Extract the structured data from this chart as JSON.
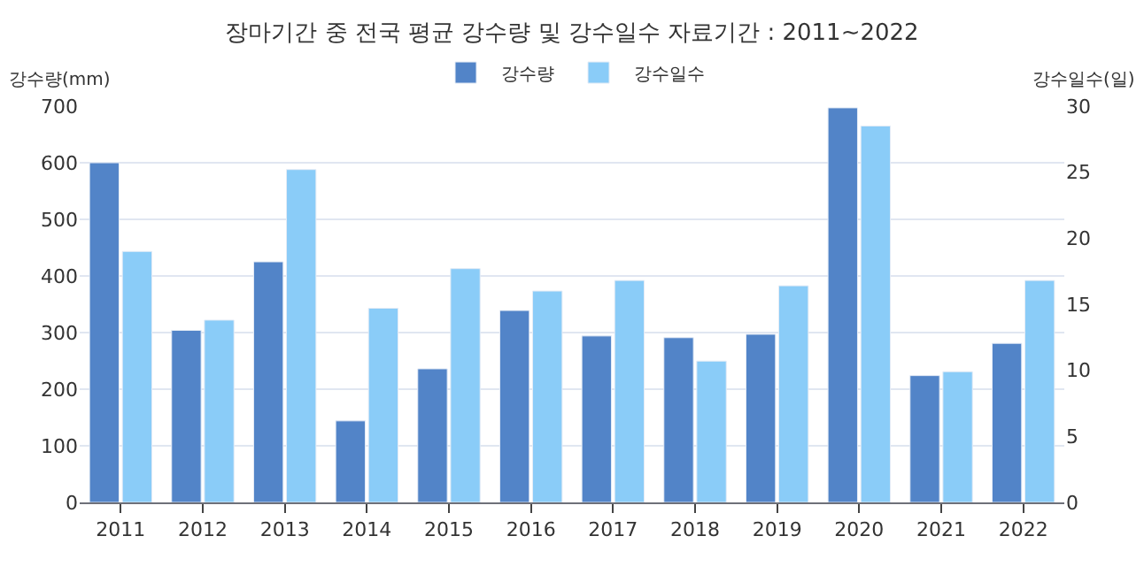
{
  "chart_data": {
    "type": "bar",
    "title": "장마기간 중 전국 평균 강수량 및 강수일수 자료기간 : 2011~2022",
    "ylabel": "강수량(mm)",
    "y2label": "강수일수(일)",
    "categories": [
      "2011",
      "2012",
      "2013",
      "2014",
      "2015",
      "2016",
      "2017",
      "2018",
      "2019",
      "2020",
      "2021",
      "2022"
    ],
    "series": [
      {
        "name": "강수량",
        "color": "#5284c8",
        "values": [
          600,
          304,
          425,
          144,
          236,
          339,
          294,
          291,
          297,
          697,
          224,
          281
        ]
      },
      {
        "name": "강수일수",
        "color": "#8accf8",
        "axis": "y2",
        "values": [
          19.0,
          13.8,
          25.2,
          14.7,
          17.7,
          16.0,
          16.8,
          10.7,
          16.4,
          28.5,
          9.9,
          16.8
        ]
      }
    ],
    "ylim": [
      0,
      700
    ],
    "yticks": [
      0,
      100,
      200,
      300,
      400,
      500,
      600,
      700
    ],
    "y2lim": [
      0,
      30
    ],
    "y2ticks": [
      0,
      5,
      10,
      15,
      20,
      25,
      30
    ],
    "grid": "y",
    "legend": "top"
  }
}
